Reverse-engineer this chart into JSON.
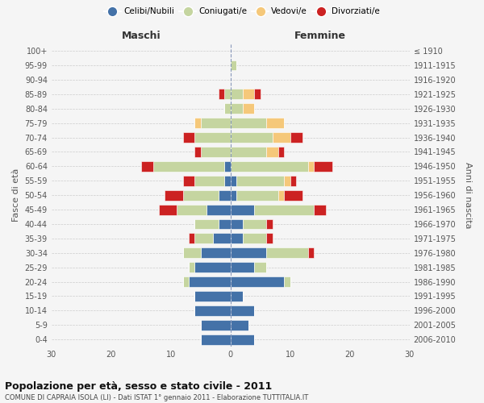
{
  "age_groups": [
    "100+",
    "95-99",
    "90-94",
    "85-89",
    "80-84",
    "75-79",
    "70-74",
    "65-69",
    "60-64",
    "55-59",
    "50-54",
    "45-49",
    "40-44",
    "35-39",
    "30-34",
    "25-29",
    "20-24",
    "15-19",
    "10-14",
    "5-9",
    "0-4"
  ],
  "birth_years": [
    "≤ 1910",
    "1911-1915",
    "1916-1920",
    "1921-1925",
    "1926-1930",
    "1931-1935",
    "1936-1940",
    "1941-1945",
    "1946-1950",
    "1951-1955",
    "1956-1960",
    "1961-1965",
    "1966-1970",
    "1971-1975",
    "1976-1980",
    "1981-1985",
    "1986-1990",
    "1991-1995",
    "1996-2000",
    "2001-2005",
    "2006-2010"
  ],
  "colors": {
    "celibi": "#4472a8",
    "coniugati": "#c5d5a0",
    "vedovi": "#f5c87a",
    "divorziati": "#cc2222"
  },
  "males": {
    "celibi": [
      0,
      0,
      0,
      0,
      0,
      0,
      0,
      0,
      1,
      1,
      2,
      4,
      2,
      3,
      5,
      6,
      7,
      6,
      6,
      5,
      5
    ],
    "coniugati": [
      0,
      0,
      0,
      1,
      1,
      5,
      6,
      5,
      12,
      5,
      6,
      5,
      4,
      3,
      3,
      1,
      1,
      0,
      0,
      0,
      0
    ],
    "vedovi": [
      0,
      0,
      0,
      0,
      0,
      1,
      0,
      0,
      0,
      0,
      0,
      0,
      0,
      0,
      0,
      0,
      0,
      0,
      0,
      0,
      0
    ],
    "divorziati": [
      0,
      0,
      0,
      1,
      0,
      0,
      2,
      1,
      2,
      2,
      3,
      3,
      0,
      1,
      0,
      0,
      0,
      0,
      0,
      0,
      0
    ]
  },
  "females": {
    "celibi": [
      0,
      0,
      0,
      0,
      0,
      0,
      0,
      0,
      0,
      1,
      1,
      4,
      2,
      2,
      6,
      4,
      9,
      2,
      4,
      3,
      4
    ],
    "coniugati": [
      0,
      1,
      0,
      2,
      2,
      6,
      7,
      6,
      13,
      8,
      7,
      10,
      4,
      4,
      7,
      2,
      1,
      0,
      0,
      0,
      0
    ],
    "vedovi": [
      0,
      0,
      0,
      2,
      2,
      3,
      3,
      2,
      1,
      1,
      1,
      0,
      0,
      0,
      0,
      0,
      0,
      0,
      0,
      0,
      0
    ],
    "divorziati": [
      0,
      0,
      0,
      1,
      0,
      0,
      2,
      1,
      3,
      1,
      3,
      2,
      1,
      1,
      1,
      0,
      0,
      0,
      0,
      0,
      0
    ]
  },
  "title": "Popolazione per età, sesso e stato civile - 2011",
  "subtitle": "COMUNE DI CAPRAIA ISOLA (LI) - Dati ISTAT 1° gennaio 2011 - Elaborazione TUTTITALIA.IT",
  "xlabel_left": "Maschi",
  "xlabel_right": "Femmine",
  "ylabel_left": "Fasce di età",
  "ylabel_right": "Anni di nascita",
  "xlim": 30,
  "legend_labels": [
    "Celibi/Nubili",
    "Coniugati/e",
    "Vedovi/e",
    "Divorziati/e"
  ],
  "bg_color": "#f5f5f5",
  "grid_color": "#cccccc"
}
